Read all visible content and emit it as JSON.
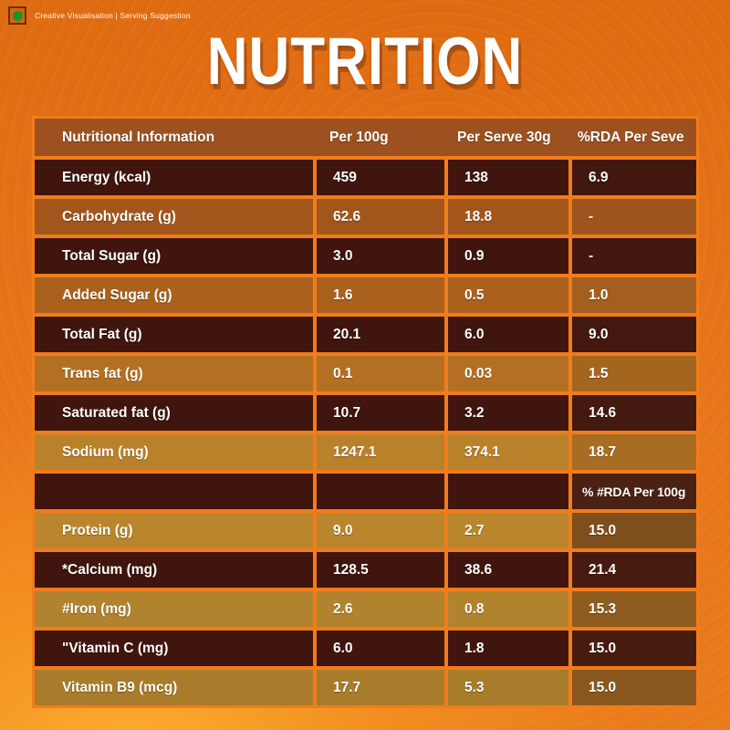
{
  "credit": {
    "label": "Creative Visualisation | Serving Suggestion",
    "veg_dot_color": "#1f9227"
  },
  "title": "NUTRITION",
  "colors": {
    "background_orange": "#e9761b",
    "divider_orange": "#f17c1b",
    "header_bg": "#9d5120",
    "dark_row_bg": "#3f150d",
    "text": "#ffffff"
  },
  "table": {
    "headers": [
      "Nutritional Information",
      "Per 100g",
      "Per Serve 30g",
      "%RDA Per Seve"
    ],
    "rows": [
      {
        "label": "Energy (kcal)",
        "values": [
          "459",
          "138",
          "6.9"
        ],
        "bg": "#3f150d",
        "bg_last": "#41170e"
      },
      {
        "label": "Carbohydrate (g)",
        "values": [
          "62.6",
          "18.8",
          "-"
        ],
        "bg": "#a2561c",
        "bg_last": "#9d551e"
      },
      {
        "label": "Total Sugar (g)",
        "values": [
          "3.0",
          "0.9",
          "-"
        ],
        "bg": "#3f150d",
        "bg_last": "#41170e"
      },
      {
        "label": "Added Sugar (g)",
        "values": [
          "1.6",
          "0.5",
          "1.0"
        ],
        "bg": "#ab611e",
        "bg_last": "#a45e1f"
      },
      {
        "label": "Total Fat (g)",
        "values": [
          "20.1",
          "6.0",
          "9.0"
        ],
        "bg": "#3f150d",
        "bg_last": "#42180f"
      },
      {
        "label": "Trans fat (g)",
        "values": [
          "0.1",
          "0.03",
          "1.5"
        ],
        "bg": "#b47022",
        "bg_last": "#a4661f"
      },
      {
        "label": "Saturated fat (g)",
        "values": [
          "10.7",
          "3.2",
          "14.6"
        ],
        "bg": "#3f150d",
        "bg_last": "#44190f"
      },
      {
        "label": "Sodium (mg)",
        "values": [
          "1247.1",
          "374.1",
          "18.7"
        ],
        "bg": "#ba812b",
        "bg_last": "#a76d22"
      },
      {
        "label": "",
        "values": [
          "",
          "",
          "% #RDA Per 100g"
        ],
        "bg": "#3f150d",
        "bg_last": "#4a2112"
      },
      {
        "label": "Protein (g)",
        "values": [
          "9.0",
          "2.7",
          "15.0"
        ],
        "bg": "#ba862d",
        "bg_last": "#7f4e1d"
      },
      {
        "label": "*Calcium (mg)",
        "values": [
          "128.5",
          "38.6",
          "21.4"
        ],
        "bg": "#3f150d",
        "bg_last": "#471b10"
      },
      {
        "label": "#Iron (mg)",
        "values": [
          "2.6",
          "0.8",
          "15.3"
        ],
        "bg": "#b2832e",
        "bg_last": "#8f5c20"
      },
      {
        "label": "\"Vitamin C (mg)",
        "values": [
          "6.0",
          "1.8",
          "15.0"
        ],
        "bg": "#3f150d",
        "bg_last": "#471b10"
      },
      {
        "label": "Vitamin B9 (mcg)",
        "values": [
          "17.7",
          "5.3",
          "15.0"
        ],
        "bg": "#a97c2b",
        "bg_last": "#8a581f"
      }
    ]
  }
}
